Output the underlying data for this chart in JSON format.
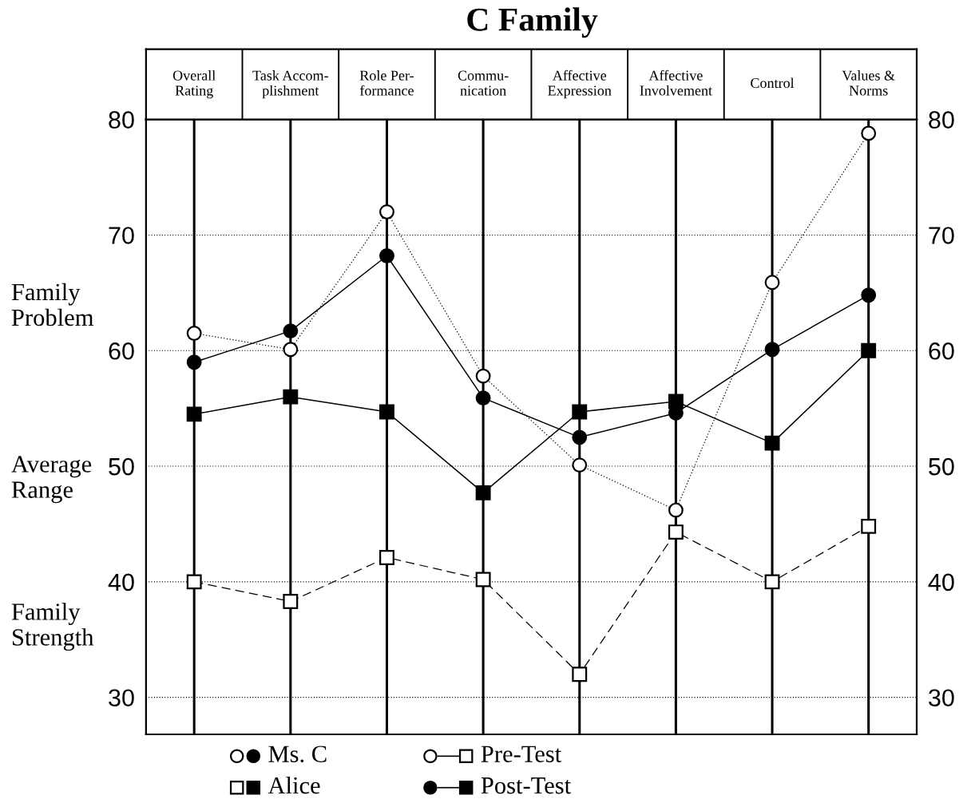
{
  "chart_data": {
    "type": "line",
    "title": "C Family",
    "categories": [
      "Overall\nRating",
      "Task Accom-\nplishment",
      "Role Per-\nformance",
      "Commu-\nnication",
      "Affective\nExpression",
      "Affective\nInvolvement",
      "Control",
      "Values &\nNorms"
    ],
    "series": [
      {
        "color": "#000000",
        "marker": "circle",
        "line_style": "dotted",
        "values": [
          61.5,
          60.1,
          72.0,
          57.8,
          50.1,
          46.2,
          65.9,
          78.8
        ]
      },
      {
        "color": "#000000",
        "marker": "circle",
        "line_style": "solid",
        "values": [
          59.0,
          61.7,
          68.2,
          55.9,
          52.5,
          54.6,
          60.1,
          64.8
        ]
      },
      {
        "color": "#000000",
        "marker": "square",
        "line_style": "dashed",
        "values": [
          40.0,
          38.3,
          42.1,
          40.2,
          32.0,
          44.3,
          40.0,
          44.8
        ]
      },
      {
        "color": "#000000",
        "marker": "square",
        "line_style": "solid",
        "values": [
          54.5,
          56.0,
          54.7,
          47.7,
          54.7,
          55.6,
          52.0,
          60.0
        ]
      }
    ],
    "ylim": [
      26.8,
      80
    ],
    "yticks": [
      30,
      40,
      50,
      60,
      70,
      80
    ],
    "y2lim": [
      26.8,
      80
    ],
    "y2ticks": [
      30,
      40,
      50,
      60,
      70,
      80
    ],
    "grid": true,
    "annotations": [
      "Family\nProblem",
      "Average\nRange",
      "Family\nStrength",
      "Ms. C",
      "Alice",
      "Pre-Test",
      "Post-Test"
    ]
  }
}
